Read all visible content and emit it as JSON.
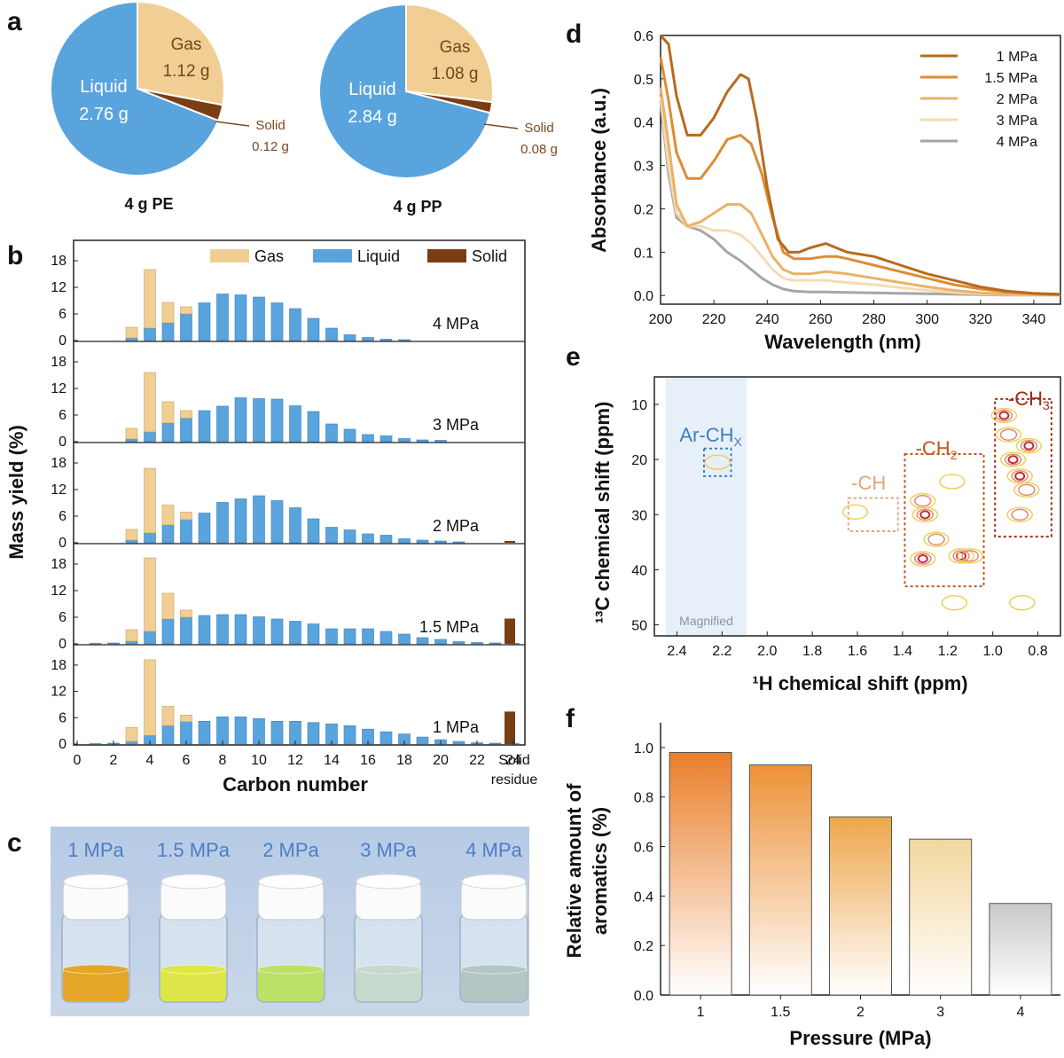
{
  "panels": {
    "a": "a",
    "b": "b",
    "c": "c",
    "d": "d",
    "e": "e",
    "f": "f"
  },
  "colors": {
    "gas": "#f1cf94",
    "liquid": "#5aa4de",
    "solid": "#7a3d14",
    "line_1mpa": "#b86a1e",
    "line_15mpa": "#dc8c35",
    "line_2mpa": "#ebb267",
    "line_3mpa": "#f5dcb4",
    "line_4mpa": "#a6a6a6",
    "nmr_blue": "#3e7fc1",
    "nmr_ch": "#e7a57a",
    "nmr_ch2": "#c8551d",
    "nmr_ch3": "#9e2c16"
  },
  "chart_data": [
    {
      "panel": "a",
      "type": "pie",
      "title": "4 g PE",
      "slices": [
        {
          "name": "Gas",
          "value": 1.12,
          "label": "1.12 g"
        },
        {
          "name": "Solid",
          "value": 0.12,
          "label": "0.12 g"
        },
        {
          "name": "Liquid",
          "value": 2.76,
          "label": "2.76 g"
        }
      ]
    },
    {
      "panel": "a",
      "type": "pie",
      "title": "4 g PP",
      "slices": [
        {
          "name": "Gas",
          "value": 1.08,
          "label": "1.08 g"
        },
        {
          "name": "Solid",
          "value": 0.08,
          "label": "0.08 g"
        },
        {
          "name": "Liquid",
          "value": 2.84,
          "label": "2.84 g"
        }
      ]
    },
    {
      "panel": "b",
      "type": "bar",
      "stacked": true,
      "ylabel": "Mass yield (%)",
      "xlabel": "Carbon number",
      "xticks": [
        "0",
        "2",
        "4",
        "6",
        "8",
        "10",
        "12",
        "14",
        "16",
        "18",
        "20",
        "22",
        "24"
      ],
      "extra_category_label": [
        "Solid",
        "residue"
      ],
      "yticks": [
        "0",
        "6",
        "12",
        "18"
      ],
      "ylim": [
        0,
        20
      ],
      "legend": [
        "Gas",
        "Liquid",
        "Solid"
      ],
      "legend_position": "top-right",
      "subplots": [
        {
          "label": "4 MPa",
          "carbon": [
            3,
            4,
            5,
            6,
            7,
            8,
            9,
            10,
            11,
            12,
            13,
            14,
            15,
            16,
            17,
            18
          ],
          "liquid": [
            0.6,
            2.8,
            4,
            6,
            8.5,
            10.5,
            10.3,
            9.8,
            8.5,
            7.2,
            5,
            2.8,
            1.3,
            0.7,
            0.3,
            0.2
          ],
          "gas": [
            2.4,
            13.2,
            4.6,
            1.6,
            0,
            0,
            0,
            0,
            0,
            0,
            0,
            0,
            0,
            0,
            0,
            0
          ],
          "solid": 0
        },
        {
          "label": "3 MPa",
          "carbon": [
            3,
            4,
            5,
            6,
            7,
            8,
            9,
            10,
            11,
            12,
            13,
            14,
            15,
            16,
            17,
            18,
            19,
            20
          ],
          "liquid": [
            0.6,
            2.2,
            4.2,
            5.3,
            7,
            8,
            9.9,
            9.7,
            9.6,
            8.1,
            6.8,
            4,
            2.8,
            1.6,
            1.3,
            0.7,
            0.4,
            0.3
          ],
          "gas": [
            2.4,
            13.4,
            4.8,
            1.7,
            0,
            0,
            0,
            0,
            0,
            0,
            0,
            0,
            0,
            0,
            0,
            0,
            0,
            0
          ],
          "solid": 0
        },
        {
          "label": "2 MPa",
          "carbon": [
            3,
            4,
            5,
            6,
            7,
            8,
            9,
            10,
            11,
            12,
            13,
            14,
            15,
            16,
            17,
            18,
            19,
            20,
            21
          ],
          "liquid": [
            0.6,
            2.2,
            4,
            5.2,
            6.7,
            9.1,
            9.9,
            10.6,
            9.5,
            7.9,
            5.4,
            3.5,
            2.9,
            2,
            1.7,
            0.9,
            0.6,
            0.4,
            0.2
          ],
          "gas": [
            2.4,
            14.6,
            4.5,
            1.7,
            0,
            0,
            0,
            0,
            0,
            0,
            0,
            0,
            0,
            0,
            0,
            0,
            0,
            0,
            0
          ],
          "solid": 0.4
        },
        {
          "label": "1.5 MPa",
          "carbon": [
            1,
            2,
            3,
            4,
            5,
            6,
            7,
            8,
            9,
            10,
            11,
            12,
            13,
            14,
            15,
            16,
            17,
            18,
            19,
            20,
            21,
            22,
            23,
            24
          ],
          "liquid": [
            0.1,
            0.2,
            0.6,
            2.8,
            5.6,
            6,
            6.4,
            6.6,
            6.6,
            6.1,
            5.6,
            5.1,
            4.5,
            3.4,
            3.4,
            3.4,
            2.8,
            2.2,
            1.4,
            1,
            0.5,
            0.3,
            0.2,
            0.1
          ],
          "gas": [
            0,
            0,
            2.6,
            16.6,
            5.8,
            1.6,
            0,
            0,
            0,
            0,
            0,
            0,
            0,
            0,
            0,
            0,
            0,
            0,
            0,
            0,
            0,
            0,
            0,
            0
          ],
          "solid": 5.7
        },
        {
          "label": "1 MPa",
          "carbon": [
            1,
            2,
            3,
            4,
            5,
            6,
            7,
            8,
            9,
            10,
            11,
            12,
            13,
            14,
            15,
            16,
            17,
            18,
            19,
            20,
            21,
            22,
            23,
            24
          ],
          "liquid": [
            0.1,
            0.2,
            0.6,
            2,
            4.2,
            5.1,
            5.2,
            6.2,
            6.2,
            5.8,
            5.2,
            5.2,
            4.9,
            4.6,
            4.2,
            3.4,
            2.8,
            2.3,
            1.6,
            1,
            0.6,
            0.3,
            0.2,
            0.1
          ],
          "gas": [
            0,
            0,
            3.2,
            17.2,
            4.4,
            1.5,
            0,
            0,
            0,
            0,
            0,
            0,
            0,
            0,
            0,
            0,
            0,
            0,
            0,
            0,
            0,
            0,
            0,
            0
          ],
          "solid": 7.4
        }
      ]
    },
    {
      "panel": "d",
      "type": "line",
      "xlabel": "Wavelength (nm)",
      "ylabel": "Absorbance (a.u.)",
      "xlim": [
        200,
        350
      ],
      "ylim": [
        -0.02,
        0.6
      ],
      "xticks": [
        "200",
        "220",
        "240",
        "260",
        "280",
        "300",
        "320",
        "340"
      ],
      "yticks": [
        "0.0",
        "0.1",
        "0.2",
        "0.3",
        "0.4",
        "0.5",
        "0.6"
      ],
      "legend_position": "top-right",
      "series": [
        {
          "name": "1 MPa",
          "x": [
            200,
            203,
            206,
            210,
            215,
            220,
            225,
            230,
            233,
            236,
            240,
            244,
            248,
            252,
            256,
            262,
            266,
            270,
            280,
            290,
            300,
            310,
            320,
            330,
            340,
            350
          ],
          "y": [
            0.6,
            0.58,
            0.46,
            0.37,
            0.37,
            0.41,
            0.47,
            0.51,
            0.5,
            0.41,
            0.25,
            0.13,
            0.1,
            0.1,
            0.11,
            0.12,
            0.11,
            0.1,
            0.09,
            0.07,
            0.05,
            0.035,
            0.02,
            0.01,
            0.005,
            0.003
          ]
        },
        {
          "name": "1.5 MPa",
          "x": [
            200,
            203,
            206,
            210,
            215,
            220,
            225,
            230,
            234,
            238,
            242,
            246,
            250,
            256,
            262,
            266,
            270,
            280,
            290,
            300,
            310,
            320,
            330,
            340,
            350
          ],
          "y": [
            0.55,
            0.45,
            0.33,
            0.27,
            0.27,
            0.31,
            0.36,
            0.37,
            0.35,
            0.28,
            0.18,
            0.1,
            0.085,
            0.085,
            0.09,
            0.09,
            0.085,
            0.07,
            0.055,
            0.04,
            0.025,
            0.015,
            0.008,
            0.004,
            0.002
          ]
        },
        {
          "name": "2 MPa",
          "x": [
            200,
            203,
            206,
            210,
            215,
            220,
            225,
            230,
            234,
            238,
            242,
            246,
            250,
            256,
            262,
            270,
            280,
            290,
            300,
            310,
            320,
            330,
            340,
            350
          ],
          "y": [
            0.48,
            0.35,
            0.21,
            0.16,
            0.17,
            0.19,
            0.21,
            0.21,
            0.19,
            0.14,
            0.09,
            0.06,
            0.05,
            0.05,
            0.055,
            0.05,
            0.04,
            0.03,
            0.02,
            0.012,
            0.006,
            0.003,
            0.002,
            0.001
          ]
        },
        {
          "name": "3 MPa",
          "x": [
            200,
            203,
            206,
            210,
            215,
            220,
            225,
            230,
            234,
            238,
            242,
            246,
            250,
            256,
            262,
            270,
            280,
            290,
            300,
            310,
            320,
            330,
            340,
            350
          ],
          "y": [
            0.46,
            0.3,
            0.19,
            0.16,
            0.16,
            0.15,
            0.15,
            0.14,
            0.12,
            0.09,
            0.06,
            0.04,
            0.035,
            0.035,
            0.035,
            0.03,
            0.025,
            0.018,
            0.012,
            0.007,
            0.004,
            0.002,
            0.001,
            0.001
          ]
        },
        {
          "name": "4 MPa",
          "x": [
            200,
            203,
            206,
            210,
            215,
            220,
            225,
            230,
            234,
            238,
            242,
            246,
            250,
            256,
            262,
            270,
            280,
            290,
            300,
            310,
            320,
            330,
            340,
            350
          ],
          "y": [
            0.45,
            0.28,
            0.18,
            0.16,
            0.15,
            0.13,
            0.1,
            0.08,
            0.06,
            0.04,
            0.025,
            0.015,
            0.01,
            0.008,
            0.008,
            0.007,
            0.006,
            0.005,
            0.004,
            0.003,
            0.002,
            0.001,
            0.001,
            0.001
          ]
        }
      ]
    },
    {
      "panel": "e",
      "type": "scatter",
      "xlabel": "¹H chemical shift (ppm)",
      "ylabel": "¹³C chemical shift (ppm)",
      "xlim": [
        2.5,
        0.7
      ],
      "ylim": [
        5,
        52
      ],
      "xticks": [
        "2.4",
        "2.2",
        "2.0",
        "1.8",
        "1.6",
        "1.4",
        "1.2",
        "1.0",
        "0.8"
      ],
      "yticks": [
        "10",
        "20",
        "30",
        "40",
        "50"
      ],
      "labels": {
        "ar": "Ar-CH",
        "ar_sub": "X",
        "ch": "-CH",
        "ch2": "-CH",
        "ch2_sub": "2",
        "ch3": "-CH",
        "ch3_sub": "3",
        "magnified": "Magnified"
      },
      "regions": [
        {
          "name": "Ar-CHx",
          "h": [
            2.28,
            2.16
          ],
          "c": [
            18,
            23
          ]
        },
        {
          "name": "-CH",
          "h": [
            1.64,
            1.42
          ],
          "c": [
            27,
            33
          ]
        },
        {
          "name": "-CH2",
          "h": [
            1.39,
            1.04
          ],
          "c": [
            19,
            43
          ]
        },
        {
          "name": "-CH3",
          "h": [
            0.99,
            0.74
          ],
          "c": [
            9,
            34
          ]
        }
      ],
      "peaks": [
        {
          "h": 2.22,
          "c": 20.5,
          "level": 1
        },
        {
          "h": 1.61,
          "c": 29.5,
          "level": 1
        },
        {
          "h": 1.31,
          "c": 27.5,
          "level": 2
        },
        {
          "h": 1.3,
          "c": 30.0,
          "level": 3
        },
        {
          "h": 1.25,
          "c": 34.5,
          "level": 2
        },
        {
          "h": 1.31,
          "c": 38.0,
          "level": 3
        },
        {
          "h": 1.14,
          "c": 37.5,
          "level": 3
        },
        {
          "h": 1.1,
          "c": 37.5,
          "level": 2
        },
        {
          "h": 1.18,
          "c": 24.0,
          "level": 1
        },
        {
          "h": 1.17,
          "c": 46.0,
          "level": 1
        },
        {
          "h": 0.95,
          "c": 12.0,
          "level": 3
        },
        {
          "h": 0.93,
          "c": 15.5,
          "level": 2
        },
        {
          "h": 0.84,
          "c": 17.5,
          "level": 3
        },
        {
          "h": 0.91,
          "c": 20.0,
          "level": 3
        },
        {
          "h": 0.88,
          "c": 23.0,
          "level": 3
        },
        {
          "h": 0.85,
          "c": 25.5,
          "level": 2
        },
        {
          "h": 0.88,
          "c": 30.0,
          "level": 2
        },
        {
          "h": 0.87,
          "c": 46.0,
          "level": 1
        }
      ]
    },
    {
      "panel": "f",
      "type": "bar",
      "xlabel": "Pressure (MPa)",
      "ylabel": "Relative amount of aromatics (%)",
      "ylim": [
        0,
        1.1
      ],
      "categories": [
        "1",
        "1.5",
        "2",
        "3",
        "4"
      ],
      "values": [
        0.98,
        0.93,
        0.72,
        0.63,
        0.37
      ],
      "yticks": [
        "0.0",
        "0.2",
        "0.4",
        "0.6",
        "0.8",
        "1.0"
      ],
      "bar_colors": [
        "#ea7f2b",
        "#ed9237",
        "#eda64b",
        "#f2d79e",
        "#c9c9c9"
      ]
    }
  ],
  "photo": {
    "panel": "c",
    "labels": [
      "1 MPa",
      "1.5 MPa",
      "2 MPa",
      "3 MPa",
      "4 MPa"
    ],
    "liquid_colors": [
      "#e3a628",
      "#dde649",
      "#bde067",
      "#c7d8cc",
      "#b4c6c4"
    ],
    "label_color": "#4a7fc4"
  }
}
